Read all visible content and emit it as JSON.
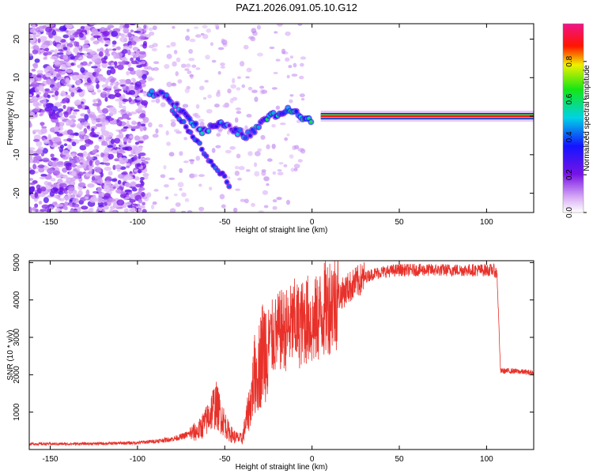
{
  "title": "PAZ1.2026.091.05.10.G12",
  "chart_data": [
    {
      "type": "heatmap",
      "xlabel": "Height of straight line (km)",
      "ylabel": "Frequency (Hz)",
      "xlim": [
        -162,
        127
      ],
      "ylim": [
        -25,
        24
      ],
      "xticks": [
        -150,
        -100,
        -50,
        0,
        50,
        100
      ],
      "yticks": [
        20,
        10,
        0,
        -10,
        -20
      ],
      "colorbar": {
        "label": "Normalized spectral amplitude",
        "range": [
          0,
          1
        ],
        "ticks": [
          "0.0",
          "0.2",
          "0.4",
          "0.6",
          "0.8"
        ],
        "tick_values": [
          0,
          0.2,
          0.4,
          0.6,
          0.8
        ],
        "colormap": "rainbow (white-violet-blue-cyan-green-yellow-red-pink)"
      },
      "ridge": {
        "description": "dominant frequency vs height",
        "x": [
          -93,
          -88,
          -83,
          -78,
          -73,
          -68,
          -63,
          -58,
          -53,
          -48,
          -43,
          -38,
          -33,
          -28,
          -23,
          -18,
          -13,
          -8,
          -3,
          0,
          3,
          8,
          20,
          50,
          80,
          110,
          127
        ],
        "y": [
          6,
          6,
          5,
          3,
          1,
          -2,
          -4,
          -3,
          -2,
          -3,
          -4,
          -5,
          -4,
          -1,
          0,
          1,
          1.5,
          1,
          -1,
          -1,
          0,
          0,
          0,
          0,
          0,
          0,
          0
        ]
      },
      "branch": {
        "description": "secondary descending branch",
        "x": [
          -80,
          -75,
          -70,
          -65,
          -60,
          -55,
          -50,
          -47
        ],
        "y": [
          2,
          -1,
          -4,
          -7,
          -11,
          -13,
          -16,
          -18
        ]
      }
    },
    {
      "type": "line",
      "xlabel": "Height of straight line (km)",
      "ylabel": "SNR (10 * v/v)",
      "xlim": [
        -162,
        127
      ],
      "ylim": [
        0,
        5050
      ],
      "xticks": [
        -150,
        -100,
        -50,
        0,
        50,
        100
      ],
      "yticks": [
        1000,
        2000,
        3000,
        4000,
        5000
      ],
      "color": "#e8312a",
      "series": [
        {
          "x": [
            -162,
            -140,
            -120,
            -100,
            -90,
            -80,
            -75,
            -70,
            -65,
            -60,
            -57,
            -55,
            -52,
            -50,
            -48,
            -45,
            -42,
            -40,
            -38,
            -35,
            -33,
            -30,
            -28,
            -25,
            -22,
            -20,
            -17,
            -15,
            -12,
            -10,
            -7,
            -5,
            -2,
            0,
            3,
            5,
            8,
            10,
            13,
            15,
            18,
            20,
            25,
            30,
            35,
            40,
            50,
            60,
            70,
            80,
            90,
            100,
            104,
            106,
            108,
            115,
            127
          ],
          "y": [
            150,
            150,
            160,
            180,
            220,
            280,
            340,
            420,
            500,
            800,
            1100,
            1200,
            900,
            700,
            500,
            350,
            300,
            280,
            700,
            1300,
            2000,
            2300,
            2700,
            2900,
            3000,
            3100,
            3200,
            3200,
            3300,
            3400,
            3300,
            3400,
            3500,
            3300,
            3500,
            3600,
            3800,
            3900,
            4000,
            4100,
            4200,
            4300,
            4450,
            4600,
            4700,
            4750,
            4800,
            4800,
            4800,
            4800,
            4800,
            4800,
            4800,
            4700,
            2100,
            2100,
            2050
          ]
        }
      ]
    }
  ]
}
